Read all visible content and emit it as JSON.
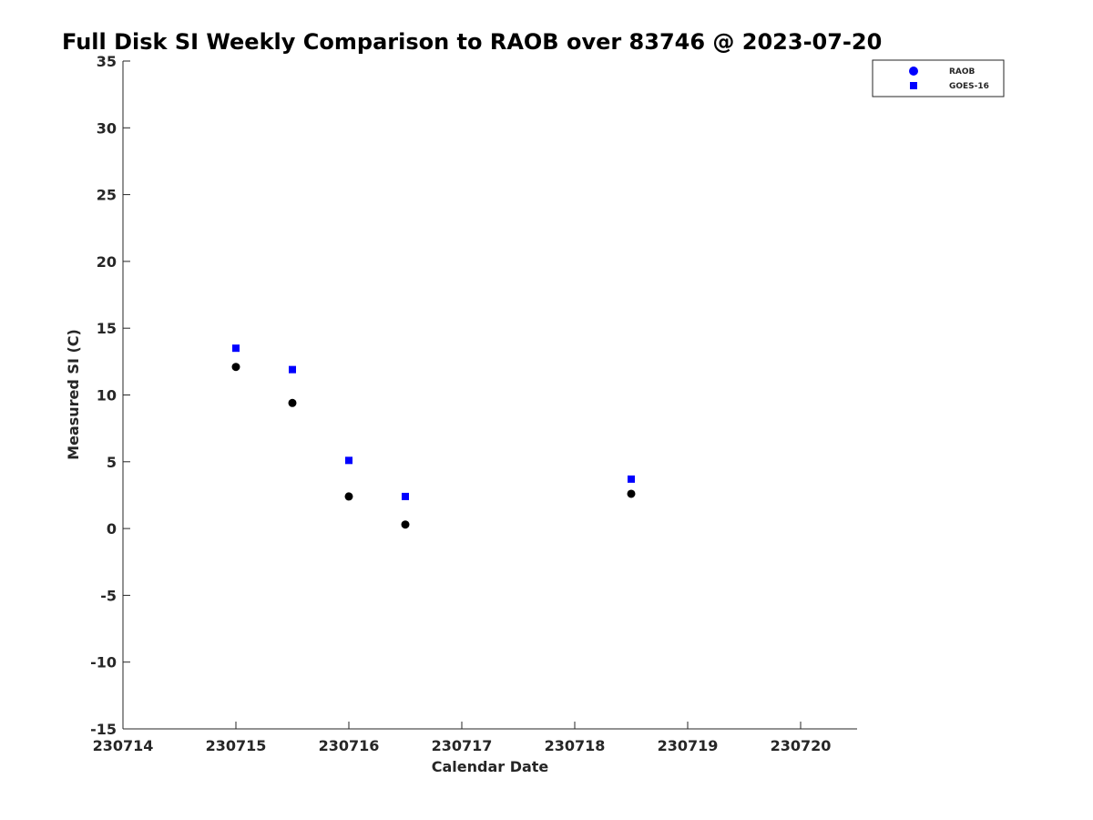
{
  "chart_data": {
    "type": "scatter",
    "title": "Full Disk SI Weekly Comparison to RAOB over 83746 @ 2023-07-20",
    "xlabel": "Calendar Date",
    "ylabel": "Measured SI (C)",
    "xlim": [
      230714,
      230720.5
    ],
    "ylim": [
      -15,
      35
    ],
    "xticks": [
      230714,
      230715,
      230716,
      230717,
      230718,
      230719,
      230720
    ],
    "xtick_labels": [
      "230714",
      "230715",
      "230716",
      "230717",
      "230718",
      "230719",
      "230720"
    ],
    "yticks": [
      -15,
      -10,
      -5,
      0,
      5,
      10,
      15,
      20,
      25,
      30,
      35
    ],
    "ytick_labels": [
      "-15",
      "-10",
      "-5",
      "0",
      "5",
      "10",
      "15",
      "20",
      "25",
      "30",
      "35"
    ],
    "grid": false,
    "legend_position": "top-right",
    "series": [
      {
        "name": "RAOB",
        "marker": "circle",
        "legend_color": "#0000ff",
        "point_color": "#000000",
        "x": [
          230715,
          230715.5,
          230716,
          230716.5,
          230718.5
        ],
        "y": [
          12.1,
          9.4,
          2.4,
          0.3,
          2.6
        ]
      },
      {
        "name": "GOES-16",
        "marker": "square",
        "legend_color": "#0000ff",
        "point_color": "#0000ff",
        "x": [
          230715,
          230715.5,
          230716,
          230716.5,
          230718.5
        ],
        "y": [
          13.5,
          11.9,
          5.1,
          2.4,
          3.7
        ]
      }
    ]
  }
}
